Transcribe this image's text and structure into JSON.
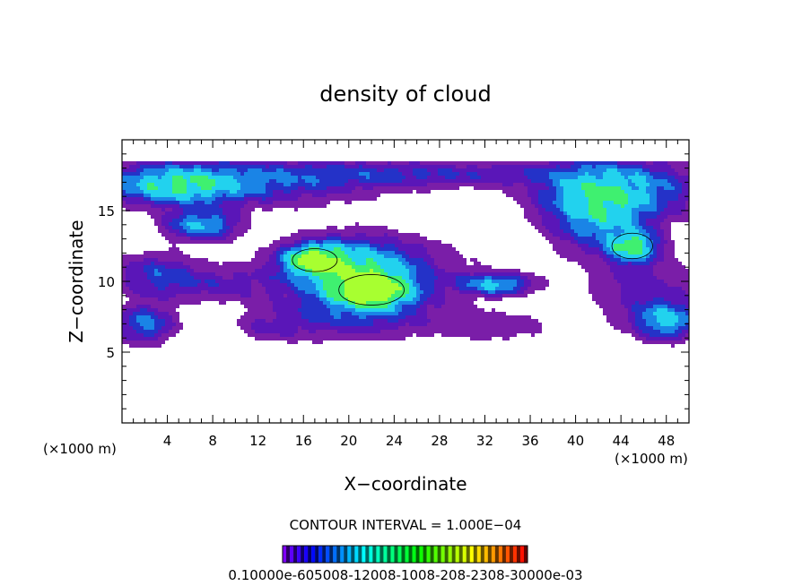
{
  "chart_data": {
    "type": "heatmap",
    "title": "density of cloud",
    "xlabel": "X−coordinate",
    "ylabel": "Z−coordinate",
    "x_unit_label": "(×1000 m)",
    "z_unit_label": "(×1000 m)",
    "xlim": [
      0,
      50
    ],
    "ylim": [
      0,
      20
    ],
    "x_ticks": [
      4,
      8,
      12,
      16,
      20,
      24,
      28,
      32,
      36,
      40,
      44,
      48
    ],
    "y_ticks": [
      5,
      10,
      15
    ],
    "contour_interval_label": "CONTOUR INTERVAL = 1.000E−04",
    "colorbar_label": "0.10000e-605008-12008-1008-208-2308-30000e-03",
    "colors": {
      "faint": "#7a1ea8",
      "low": "#5a16b8",
      "mid_low": "#2432c8",
      "mid": "#1a84e6",
      "mid_high": "#22d2ee",
      "high": "#3ff070",
      "peak": "#a8ff30"
    },
    "cloud_blobs": [
      {
        "x": 10,
        "z": 17.0,
        "rx": 12,
        "rz": 1.6,
        "level": 0.18
      },
      {
        "x": 27,
        "z": 17.6,
        "rx": 14,
        "rz": 0.9,
        "level": 0.13
      },
      {
        "x": 44,
        "z": 16.5,
        "rx": 7,
        "rz": 2.0,
        "level": 0.23
      },
      {
        "x": 5,
        "z": 16.8,
        "rx": 5,
        "rz": 1.2,
        "level": 0.3
      },
      {
        "x": 7,
        "z": 14.0,
        "rx": 3,
        "rz": 1.0,
        "level": 0.28
      },
      {
        "x": 42,
        "z": 15.0,
        "rx": 4,
        "rz": 2.5,
        "level": 0.3
      },
      {
        "x": 45,
        "z": 12.5,
        "rx": 2,
        "rz": 1.0,
        "level": 0.42
      },
      {
        "x": 22,
        "z": 10.5,
        "rx": 9,
        "rz": 2.6,
        "level": 0.12
      },
      {
        "x": 20,
        "z": 11.0,
        "rx": 5,
        "rz": 1.8,
        "level": 0.3
      },
      {
        "x": 17,
        "z": 11.5,
        "rx": 2.2,
        "rz": 0.9,
        "level": 0.55
      },
      {
        "x": 22,
        "z": 9.4,
        "rx": 3.2,
        "rz": 1.2,
        "level": 0.62
      },
      {
        "x": 33,
        "z": 9.8,
        "rx": 3,
        "rz": 0.7,
        "level": 0.28
      },
      {
        "x": 3,
        "z": 10.5,
        "rx": 3.5,
        "rz": 1.5,
        "level": 0.15
      },
      {
        "x": 8,
        "z": 9.8,
        "rx": 5,
        "rz": 1.2,
        "level": 0.1
      },
      {
        "x": 46,
        "z": 9.5,
        "rx": 5,
        "rz": 2.5,
        "level": 0.11
      },
      {
        "x": 2,
        "z": 7.0,
        "rx": 2.5,
        "rz": 1.3,
        "level": 0.22
      },
      {
        "x": 48,
        "z": 7.2,
        "rx": 2.5,
        "rz": 1.2,
        "level": 0.3
      },
      {
        "x": 20,
        "z": 7.5,
        "rx": 7,
        "rz": 1.6,
        "level": 0.13
      },
      {
        "x": 33,
        "z": 6.8,
        "rx": 6,
        "rz": 1.2,
        "level": 0.07
      },
      {
        "x": 13,
        "z": 6.6,
        "rx": 3,
        "rz": 1.0,
        "level": 0.07
      }
    ]
  }
}
